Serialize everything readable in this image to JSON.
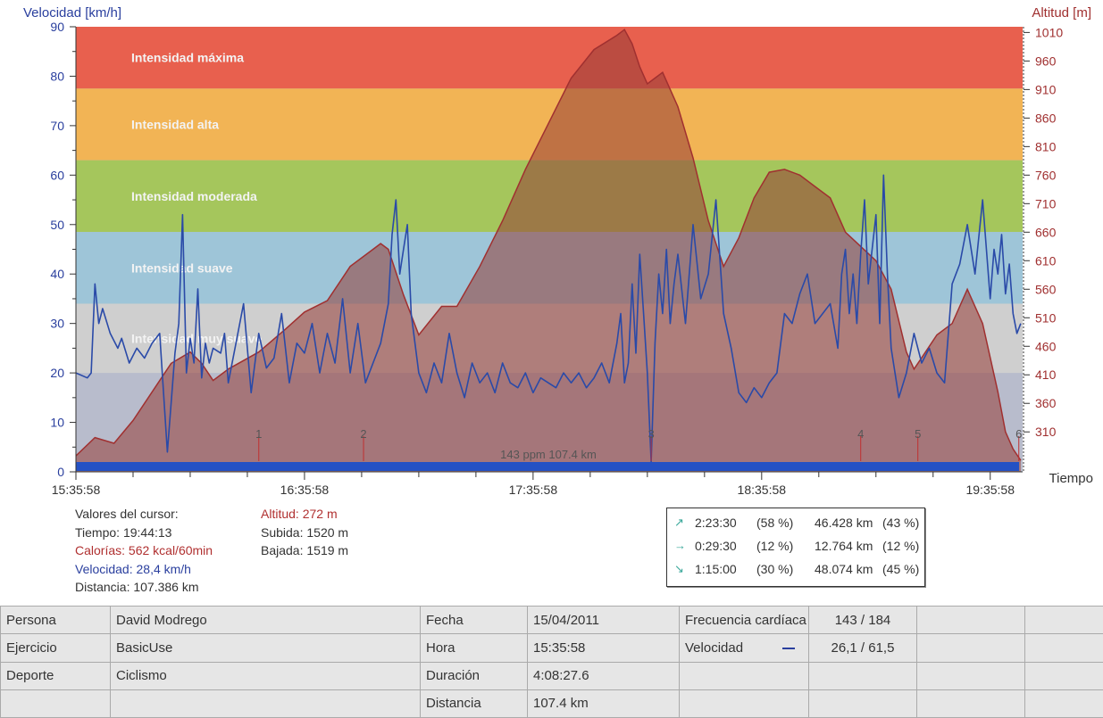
{
  "chart_data": {
    "type": "line",
    "ylabel_left": "Velocidad [km/h]",
    "ylabel_right": "Altitud [m]",
    "xlabel": "Tiempo",
    "left_ticks": [
      0,
      10,
      20,
      30,
      40,
      50,
      60,
      70,
      80,
      90
    ],
    "right_ticks": [
      310,
      360,
      410,
      460,
      510,
      560,
      610,
      660,
      710,
      760,
      810,
      860,
      910,
      960,
      1010
    ],
    "x_ticks": [
      "15:35:58",
      "16:35:58",
      "17:35:58",
      "18:35:58",
      "19:35:58"
    ],
    "ylim_left": [
      0,
      90
    ],
    "ylim_right": [
      240,
      1020
    ],
    "xlim_minutes": [
      0,
      248.5
    ],
    "zones": [
      {
        "label": "Intensidad máxima",
        "from": 77.5,
        "to": 90,
        "color": "#e8604e"
      },
      {
        "label": "Intensidad alta",
        "from": 63,
        "to": 77.5,
        "color": "#f2b455"
      },
      {
        "label": "Intensidad moderada",
        "from": 48.5,
        "to": 63,
        "color": "#a5c65c"
      },
      {
        "label": "Intensidad suave",
        "from": 34,
        "to": 48.5,
        "color": "#9ec5d8"
      },
      {
        "label": "Intensidad muy suave",
        "from": 20,
        "to": 34,
        "color": "#cfcfcf"
      }
    ],
    "laps": [
      {
        "label": "1",
        "minute": 48
      },
      {
        "label": "2",
        "minute": 75.5
      },
      {
        "label": "3",
        "minute": 151
      },
      {
        "label": "4",
        "minute": 206
      },
      {
        "label": "5",
        "minute": 221
      },
      {
        "label": "6",
        "minute": 247.5
      }
    ],
    "bottom_annotation": "143 ppm 107.4 km",
    "series": [
      {
        "name": "Altitud",
        "color": "#a03030",
        "x": [
          0,
          5,
          10,
          15,
          20,
          25,
          30,
          33,
          36,
          40,
          48,
          55,
          60,
          66,
          72,
          78,
          80,
          82,
          86,
          90,
          96,
          100,
          106,
          112,
          118,
          124,
          130,
          136,
          142,
          144,
          146,
          148,
          150,
          154,
          158,
          162,
          166,
          170,
          174,
          178,
          182,
          186,
          190,
          194,
          198,
          202,
          206,
          210,
          214,
          218,
          220,
          222,
          226,
          230,
          234,
          238,
          242,
          244,
          246,
          248
        ],
        "y": [
          268,
          300,
          290,
          330,
          380,
          430,
          450,
          430,
          400,
          420,
          450,
          490,
          520,
          540,
          600,
          630,
          640,
          630,
          550,
          480,
          530,
          530,
          600,
          680,
          770,
          850,
          930,
          980,
          1005,
          1015,
          990,
          950,
          920,
          940,
          880,
          790,
          680,
          600,
          650,
          720,
          765,
          770,
          760,
          740,
          720,
          660,
          635,
          610,
          560,
          450,
          420,
          440,
          480,
          500,
          560,
          500,
          380,
          310,
          280,
          260
        ]
      },
      {
        "name": "Velocidad",
        "color": "#2a4aa8",
        "x": [
          0,
          3,
          4,
          5,
          6,
          7,
          9,
          11,
          12,
          14,
          16,
          18,
          20,
          22,
          24,
          26,
          27,
          28,
          29,
          30,
          31,
          32,
          33,
          34,
          35,
          36,
          38,
          39,
          40,
          42,
          44,
          46,
          48,
          50,
          52,
          54,
          56,
          58,
          60,
          62,
          64,
          66,
          68,
          70,
          72,
          74,
          76,
          78,
          80,
          81,
          82,
          83,
          84,
          85,
          86,
          87,
          88,
          90,
          92,
          94,
          96,
          98,
          100,
          102,
          104,
          106,
          108,
          110,
          112,
          114,
          116,
          118,
          120,
          122,
          124,
          126,
          128,
          130,
          132,
          134,
          136,
          138,
          140,
          142,
          143,
          144,
          145,
          146,
          147,
          148,
          149,
          150,
          151,
          152,
          153,
          154,
          155,
          156,
          157,
          158,
          160,
          162,
          164,
          166,
          168,
          170,
          172,
          174,
          176,
          178,
          180,
          182,
          184,
          186,
          188,
          190,
          192,
          194,
          196,
          198,
          200,
          201,
          202,
          203,
          204,
          205,
          206,
          207,
          208,
          209,
          210,
          211,
          212,
          213,
          214,
          216,
          218,
          220,
          222,
          224,
          226,
          228,
          230,
          232,
          234,
          236,
          238,
          240,
          241,
          242,
          243,
          244,
          245,
          246,
          247,
          248
        ],
        "y": [
          20,
          19,
          20,
          38,
          30,
          33,
          28,
          25,
          27,
          22,
          25,
          23,
          26,
          28,
          4,
          24,
          30,
          52,
          20,
          27,
          22,
          37,
          19,
          26,
          22,
          25,
          24,
          28,
          18,
          26,
          34,
          16,
          28,
          21,
          23,
          32,
          18,
          26,
          24,
          30,
          20,
          28,
          22,
          35,
          20,
          30,
          18,
          22,
          26,
          30,
          34,
          48,
          55,
          40,
          45,
          50,
          32,
          20,
          16,
          22,
          18,
          28,
          20,
          15,
          22,
          18,
          20,
          16,
          22,
          18,
          17,
          20,
          16,
          19,
          18,
          17,
          20,
          18,
          20,
          17,
          19,
          22,
          18,
          26,
          32,
          18,
          22,
          38,
          24,
          44,
          32,
          20,
          2,
          26,
          40,
          32,
          45,
          30,
          38,
          44,
          30,
          50,
          35,
          40,
          55,
          32,
          25,
          16,
          14,
          17,
          15,
          18,
          20,
          32,
          30,
          36,
          40,
          30,
          32,
          34,
          25,
          40,
          45,
          32,
          40,
          30,
          44,
          55,
          38,
          45,
          52,
          30,
          60,
          40,
          25,
          15,
          20,
          28,
          22,
          25,
          20,
          18,
          38,
          42,
          50,
          40,
          55,
          35,
          45,
          40,
          48,
          36,
          42,
          32,
          28,
          30
        ]
      }
    ]
  },
  "cursor": {
    "title": "Valores del cursor:",
    "tiempo": "Tiempo: 19:44:13",
    "calorias": "Calorías: 562 kcal/60min",
    "velocidad": "Velocidad: 28,4 km/h",
    "distancia": "Distancia: 107.386 km",
    "altitud": "Altitud: 272 m",
    "subida": "Subida: 1520 m",
    "bajada": "Bajada: 1519 m"
  },
  "stats": [
    {
      "arrow": "↗",
      "time": "2:23:30",
      "pct": "(58 %)",
      "dist": "46.428 km",
      "dpct": "(43 %)"
    },
    {
      "arrow": "→",
      "time": "0:29:30",
      "pct": "(12 %)",
      "dist": "12.764 km",
      "dpct": "(12 %)"
    },
    {
      "arrow": "↘",
      "time": "1:15:00",
      "pct": "(30 %)",
      "dist": "48.074 km",
      "dpct": "(45 %)"
    }
  ],
  "info": {
    "persona_label": "Persona",
    "persona": "David Modrego",
    "ejercicio_label": "Ejercicio",
    "ejercicio": "BasicUse",
    "deporte_label": "Deporte",
    "deporte": "Ciclismo",
    "fecha_label": "Fecha",
    "fecha": "15/04/2011",
    "hora_label": "Hora",
    "hora": "15:35:58",
    "duracion_label": "Duración",
    "duracion": "4:08:27.6",
    "distancia_label": "Distancia",
    "distancia": "107.4 km",
    "fc_label": "Frecuencia cardíaca",
    "fc": "143 / 184",
    "vel_label": "Velocidad",
    "vel": "26,1 / 61,5"
  }
}
